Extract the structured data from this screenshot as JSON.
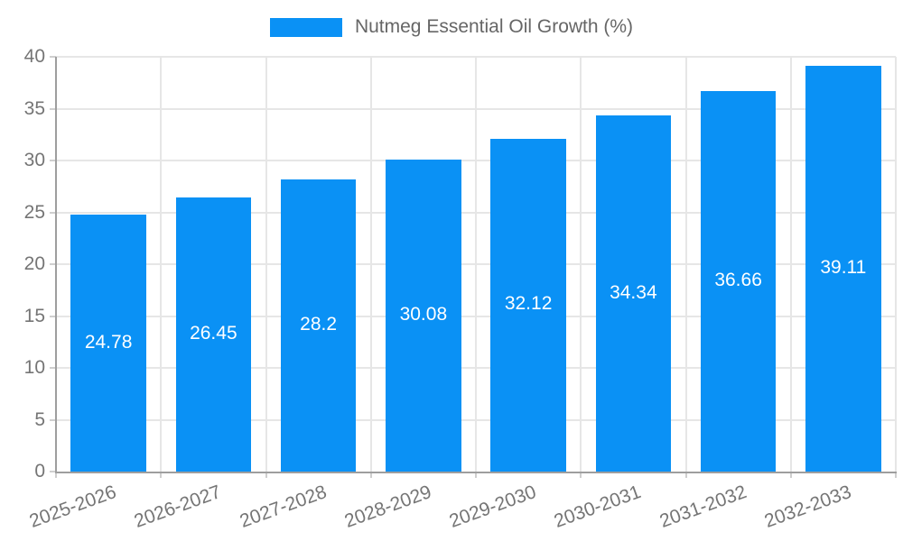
{
  "legend": {
    "label": "Nutmeg Essential Oil Growth (%)"
  },
  "chart_data": {
    "type": "bar",
    "title": "Nutmeg Essential Oil Growth (%)",
    "legend_position": "top-center",
    "categories": [
      "2025-2026",
      "2026-2027",
      "2027-2028",
      "2028-2029",
      "2029-2030",
      "2030-2031",
      "2031-2032",
      "2032-2033"
    ],
    "series": [
      {
        "name": "Nutmeg Essential Oil Growth (%)",
        "values": [
          24.78,
          26.45,
          28.2,
          30.08,
          32.12,
          34.34,
          36.66,
          39.11
        ],
        "value_labels": [
          "24.78",
          "26.45",
          "28.2",
          "30.08",
          "32.12",
          "34.34",
          "36.66",
          "39.11"
        ]
      }
    ],
    "xlabel": "",
    "ylabel": "",
    "ylim": [
      0,
      40
    ],
    "yticks": [
      0,
      5,
      10,
      15,
      20,
      25,
      30,
      35,
      40
    ],
    "grid": true,
    "x_label_rotation_deg": -20,
    "colors": {
      "bar": "#0a91f5",
      "bar_value_text": "#ffffff",
      "axis_text": "#757575",
      "legend_text": "#666666",
      "grid_line": "#e6e6e6",
      "axis_line": "#9e9e9e",
      "tick_mark": "#cfcfcf",
      "background": "#ffffff"
    }
  }
}
